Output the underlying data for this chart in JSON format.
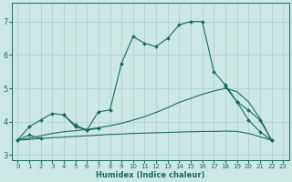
{
  "xlabel": "Humidex (Indice chaleur)",
  "bg_color": "#cce8e4",
  "grid_color": "#aacccc",
  "line_color": "#1a6b5a",
  "xlim": [
    -0.5,
    23.5
  ],
  "ylim": [
    2.85,
    7.55
  ],
  "yticks": [
    3,
    4,
    5,
    6,
    7
  ],
  "xticks": [
    0,
    1,
    2,
    3,
    4,
    5,
    6,
    7,
    8,
    9,
    10,
    11,
    12,
    13,
    14,
    15,
    16,
    17,
    18,
    19,
    20,
    21,
    22,
    23
  ],
  "series": [
    {
      "x": [
        0,
        1,
        2,
        3,
        4,
        5,
        6,
        7,
        8,
        9,
        10,
        11,
        12,
        13,
        14,
        15,
        16,
        17,
        18,
        19,
        20,
        21,
        22
      ],
      "y": [
        3.45,
        3.85,
        4.05,
        4.25,
        4.2,
        3.9,
        3.75,
        4.3,
        4.35,
        5.75,
        6.55,
        6.35,
        6.25,
        6.5,
        6.9,
        7.0,
        7.0,
        5.5,
        5.1,
        4.6,
        4.05,
        3.7,
        3.45
      ],
      "marker": "D",
      "markersize": 2.0,
      "linewidth": 0.8,
      "has_markers": true
    },
    {
      "segments": [
        {
          "x": [
            0,
            1,
            2
          ],
          "y": [
            3.45,
            3.6,
            3.5
          ]
        },
        {
          "x": [
            4,
            5,
            6,
            7
          ],
          "y": [
            4.2,
            3.85,
            3.75,
            3.8
          ]
        },
        {
          "x": [
            18,
            19,
            20,
            21,
            22
          ],
          "y": [
            5.05,
            4.6,
            4.35,
            4.05,
            3.45
          ]
        }
      ],
      "marker": "D",
      "markersize": 2.0,
      "linewidth": 0.8,
      "has_markers": true
    },
    {
      "x": [
        0,
        1,
        2,
        3,
        4,
        5,
        6,
        7,
        8,
        9,
        10,
        11,
        12,
        13,
        14,
        15,
        16,
        17,
        18,
        19,
        20,
        21,
        22
      ],
      "y": [
        3.45,
        3.47,
        3.5,
        3.52,
        3.54,
        3.56,
        3.58,
        3.6,
        3.62,
        3.63,
        3.65,
        3.66,
        3.67,
        3.68,
        3.69,
        3.7,
        3.71,
        3.71,
        3.72,
        3.71,
        3.65,
        3.55,
        3.45
      ],
      "marker": null,
      "markersize": 0,
      "linewidth": 0.8,
      "has_markers": false
    },
    {
      "x": [
        0,
        1,
        2,
        3,
        4,
        5,
        6,
        7,
        8,
        9,
        10,
        11,
        12,
        13,
        14,
        15,
        16,
        17,
        18,
        19,
        20,
        21,
        22
      ],
      "y": [
        3.45,
        3.5,
        3.58,
        3.65,
        3.7,
        3.73,
        3.77,
        3.82,
        3.88,
        3.95,
        4.05,
        4.15,
        4.28,
        4.42,
        4.58,
        4.7,
        4.82,
        4.92,
        5.0,
        4.9,
        4.6,
        4.1,
        3.45
      ],
      "marker": null,
      "markersize": 0,
      "linewidth": 0.8,
      "has_markers": false
    }
  ]
}
